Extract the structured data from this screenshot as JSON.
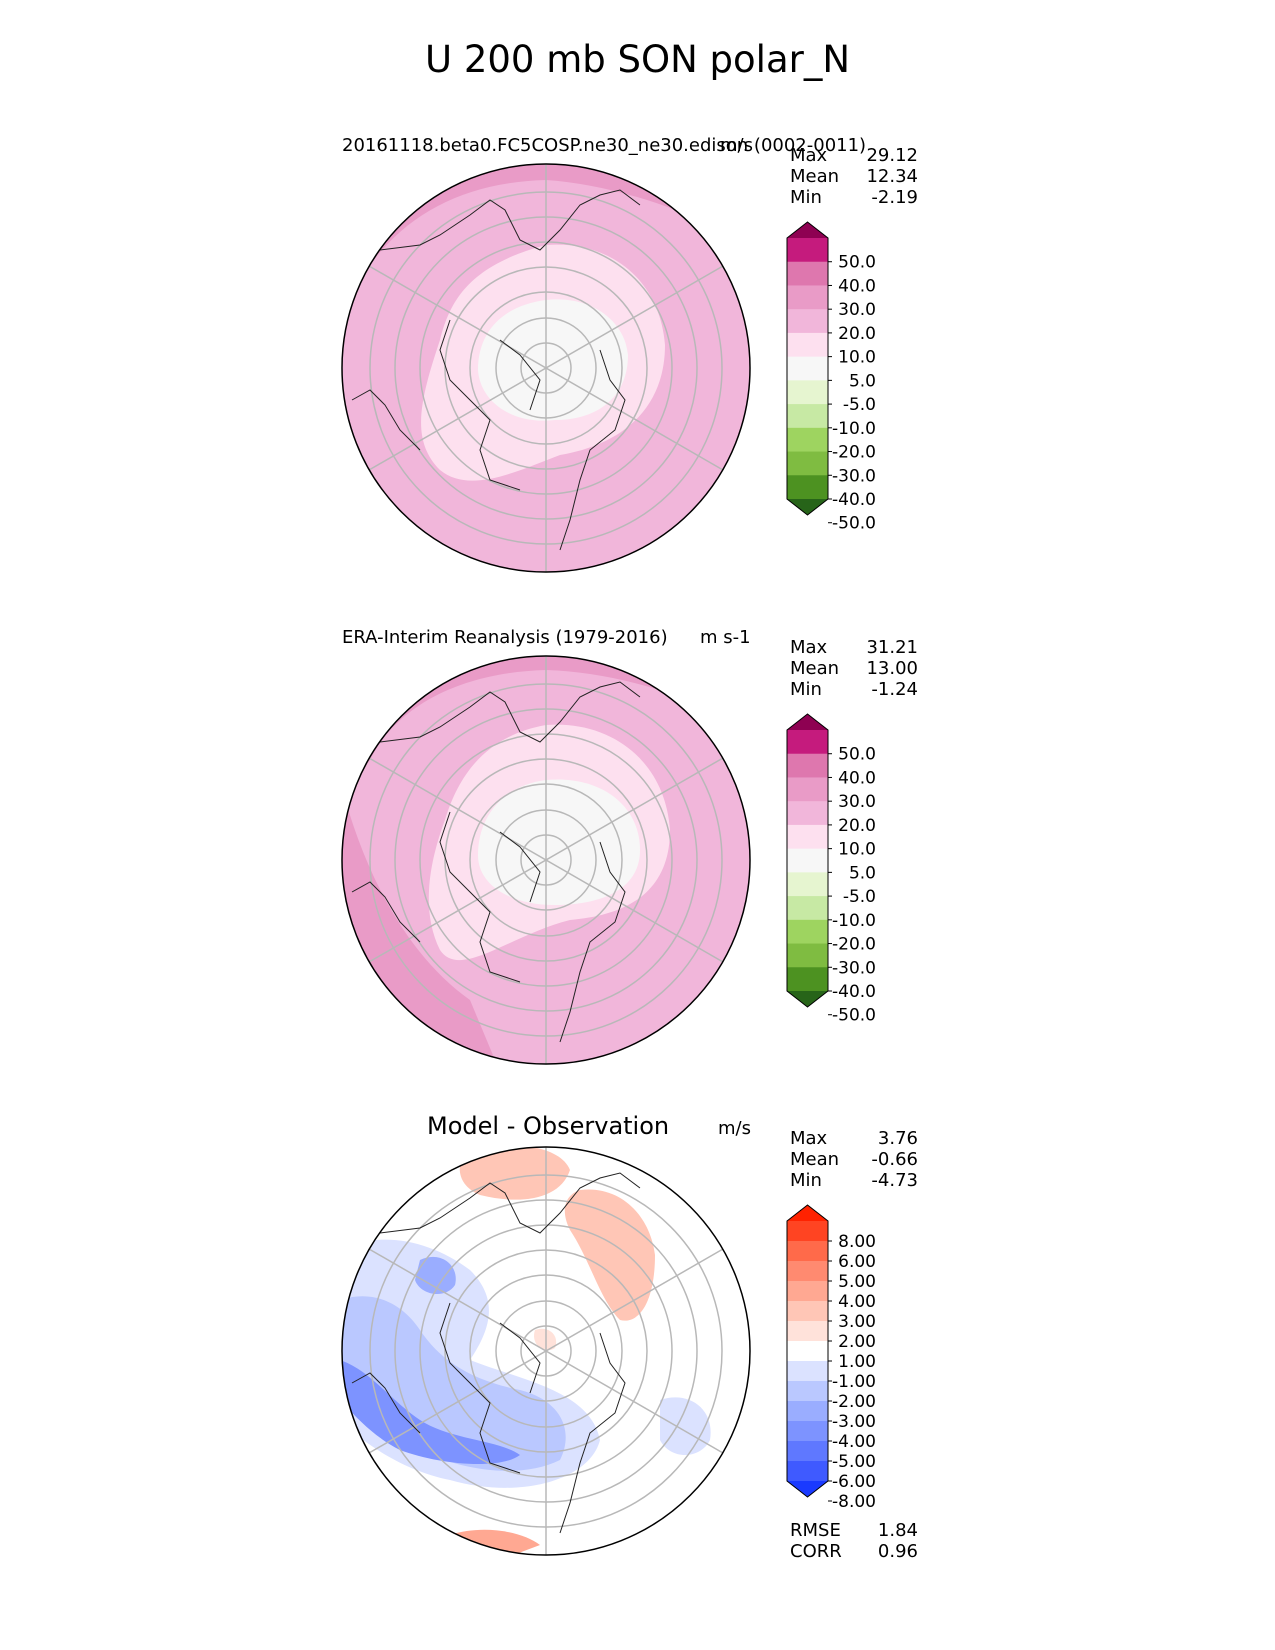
{
  "title": "U 200 mb SON polar_N",
  "panels": [
    {
      "left_title": "20161118.beta0.FC5COSP.ne30_ne30.edison (0002-0011)",
      "units": "m/s",
      "stats": [
        {
          "label": "Max",
          "value": "29.12"
        },
        {
          "label": "Mean",
          "value": "12.34"
        },
        {
          "label": "Min",
          "value": "-2.19"
        }
      ],
      "colorbar": {
        "ticks": [
          "50.0",
          "40.0",
          "30.0",
          "20.0",
          "10.0",
          "5.0",
          "-5.0",
          "-10.0",
          "-20.0",
          "-30.0",
          "-40.0",
          "-50.0"
        ],
        "colors": [
          "#8e0152",
          "#c51b7d",
          "#de77ae",
          "#e99bc7",
          "#f1b6da",
          "#fde0ef",
          "#f7f7f7",
          "#e6f5d0",
          "#c7e9a4",
          "#9ed460",
          "#7fbc41",
          "#4d9221",
          "#276419"
        ]
      }
    },
    {
      "left_title": "ERA-Interim Reanalysis (1979-2016)",
      "units": "m s-1",
      "stats": [
        {
          "label": "Max",
          "value": "31.21"
        },
        {
          "label": "Mean",
          "value": "13.00"
        },
        {
          "label": "Min",
          "value": "-1.24"
        }
      ],
      "colorbar": {
        "ticks": [
          "50.0",
          "40.0",
          "30.0",
          "20.0",
          "10.0",
          "5.0",
          "-5.0",
          "-10.0",
          "-20.0",
          "-30.0",
          "-40.0",
          "-50.0"
        ],
        "colors": [
          "#8e0152",
          "#c51b7d",
          "#de77ae",
          "#e99bc7",
          "#f1b6da",
          "#fde0ef",
          "#f7f7f7",
          "#e6f5d0",
          "#c7e9a4",
          "#9ed460",
          "#7fbc41",
          "#4d9221",
          "#276419"
        ]
      }
    },
    {
      "center_title": "Model - Observation",
      "units": "m/s",
      "stats": [
        {
          "label": "Max",
          "value": "3.76"
        },
        {
          "label": "Mean",
          "value": "-0.66"
        },
        {
          "label": "Min",
          "value": "-4.73"
        }
      ],
      "metrics": [
        {
          "label": "RMSE",
          "value": "1.84"
        },
        {
          "label": "CORR",
          "value": "0.96"
        }
      ],
      "colorbar": {
        "ticks": [
          "8.00",
          "6.00",
          "5.00",
          "4.00",
          "3.00",
          "2.00",
          "1.00",
          "-1.00",
          "-2.00",
          "-3.00",
          "-4.00",
          "-5.00",
          "-6.00",
          "-8.00"
        ],
        "colors": [
          "#ff2200",
          "#ff4422",
          "#ff6a4a",
          "#ff8a70",
          "#ffa892",
          "#ffc6b6",
          "#ffe2da",
          "#ffffff",
          "#dbe2ff",
          "#bac8ff",
          "#9aadff",
          "#7d93ff",
          "#5f78ff",
          "#3f5aff",
          "#1a3aff"
        ]
      }
    }
  ],
  "chart_data": [
    {
      "type": "heatmap",
      "projection": "north polar stereographic",
      "field": "U 200 mb SON",
      "title": "20161118.beta0.FC5COSP.ne30_ne30.edison (0002-0011)",
      "units": "m/s",
      "levels": [
        -50,
        -40,
        -30,
        -20,
        -10,
        -5,
        5,
        10,
        20,
        30,
        40,
        50
      ],
      "max": 29.12,
      "mean": 12.34,
      "min": -2.19
    },
    {
      "type": "heatmap",
      "projection": "north polar stereographic",
      "field": "U 200 mb SON",
      "title": "ERA-Interim Reanalysis (1979-2016)",
      "units": "m s-1",
      "levels": [
        -50,
        -40,
        -30,
        -20,
        -10,
        -5,
        5,
        10,
        20,
        30,
        40,
        50
      ],
      "max": 31.21,
      "mean": 13.0,
      "min": -1.24
    },
    {
      "type": "heatmap",
      "projection": "north polar stereographic",
      "field": "U 200 mb SON",
      "title": "Model - Observation",
      "units": "m/s",
      "levels": [
        -8,
        -6,
        -5,
        -4,
        -3,
        -2,
        -1,
        1,
        2,
        3,
        4,
        5,
        6,
        8
      ],
      "max": 3.76,
      "mean": -0.66,
      "min": -4.73,
      "rmse": 1.84,
      "corr": 0.96
    }
  ]
}
